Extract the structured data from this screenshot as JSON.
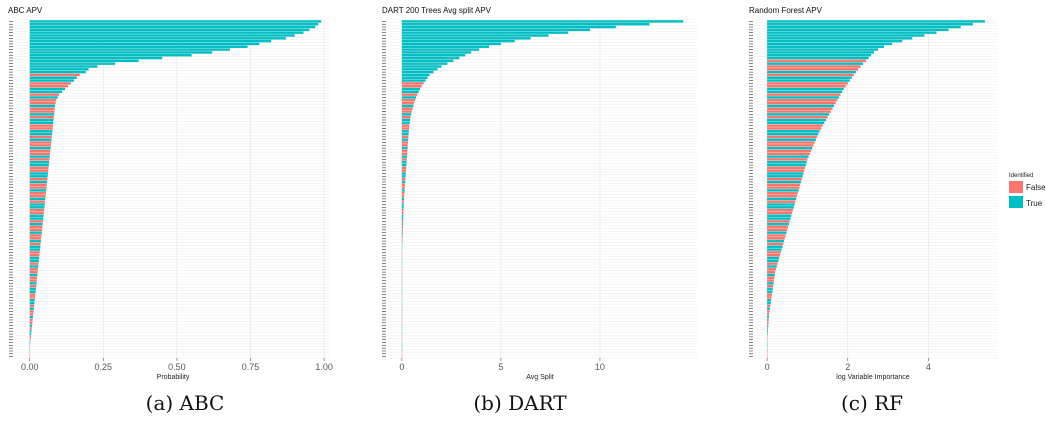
{
  "legend": {
    "title": "Identified",
    "items": [
      {
        "label": "False",
        "color": "#F8766D"
      },
      {
        "label": "True",
        "color": "#00BFC4"
      }
    ]
  },
  "chart_data": [
    {
      "type": "bar",
      "orientation": "horizontal",
      "title": "ABC APV",
      "xlabel": "Probability",
      "caption": "(a) ABC",
      "xlim": [
        -0.05,
        1.02
      ],
      "xticks": [
        0.0,
        0.25,
        0.5,
        0.75,
        1.0
      ],
      "xtick_labels": [
        "0.00",
        "0.25",
        "0.50",
        "0.75",
        "1.00"
      ],
      "n_true_top": 18,
      "true_values": [
        0.99,
        0.98,
        0.97,
        0.95,
        0.93,
        0.9,
        0.87,
        0.82,
        0.78,
        0.74,
        0.68,
        0.62,
        0.55,
        0.45,
        0.37,
        0.29,
        0.23,
        0.2
      ],
      "values": [
        0.99,
        0.98,
        0.97,
        0.95,
        0.93,
        0.9,
        0.87,
        0.82,
        0.78,
        0.74,
        0.68,
        0.62,
        0.55,
        0.45,
        0.37,
        0.29,
        0.23,
        0.2,
        0.19,
        0.17,
        0.16,
        0.15,
        0.14,
        0.13,
        0.12,
        0.11,
        0.1,
        0.095,
        0.09,
        0.088,
        0.086,
        0.085,
        0.084,
        0.083,
        0.082,
        0.081,
        0.08,
        0.079,
        0.078,
        0.077,
        0.076,
        0.075,
        0.074,
        0.073,
        0.072,
        0.071,
        0.07,
        0.069,
        0.068,
        0.067,
        0.066,
        0.065,
        0.064,
        0.063,
        0.062,
        0.061,
        0.06,
        0.059,
        0.058,
        0.057,
        0.056,
        0.055,
        0.054,
        0.053,
        0.052,
        0.051,
        0.05,
        0.049,
        0.048,
        0.047,
        0.046,
        0.045,
        0.044,
        0.043,
        0.042,
        0.041,
        0.04,
        0.039,
        0.038,
        0.037,
        0.036,
        0.035,
        0.034,
        0.033,
        0.032,
        0.031,
        0.03,
        0.029,
        0.028,
        0.027,
        0.026,
        0.025,
        0.024,
        0.023,
        0.022,
        0.021,
        0.02,
        0.019,
        0.018,
        0.017,
        0.016,
        0.015,
        0.014,
        0.013,
        0.012,
        0.011,
        0.01,
        0.009,
        0.008,
        0.007,
        0.006,
        0.005,
        0.004,
        0.003,
        0.002,
        0.001,
        0.0005,
        0.0003,
        0.0002,
        0.0001
      ]
    },
    {
      "type": "bar",
      "orientation": "horizontal",
      "title": "DART 200 Trees Avg split APV",
      "xlabel": "Avg Split",
      "caption": "(b) DART",
      "xlim": [
        -0.7,
        14.9
      ],
      "xticks": [
        0,
        5,
        10
      ],
      "xtick_labels": [
        "0",
        "5",
        "10"
      ],
      "n_true_top": 20,
      "true_values": [
        14.2,
        12.5,
        10.8,
        9.5,
        8.4,
        7.4,
        6.5,
        5.7,
        5.0,
        4.4,
        3.9,
        3.5,
        3.2,
        2.9,
        2.6,
        2.3,
        2.0,
        1.8,
        1.6,
        1.4
      ],
      "values": [
        14.2,
        12.5,
        10.8,
        9.5,
        8.4,
        7.4,
        6.5,
        5.7,
        5.0,
        4.4,
        3.9,
        3.5,
        3.2,
        2.9,
        2.6,
        2.3,
        2.0,
        1.8,
        1.6,
        1.4,
        1.3,
        1.2,
        1.1,
        1.0,
        0.92,
        0.85,
        0.78,
        0.72,
        0.67,
        0.62,
        0.58,
        0.54,
        0.5,
        0.47,
        0.44,
        0.42,
        0.4,
        0.38,
        0.36,
        0.35,
        0.34,
        0.33,
        0.32,
        0.31,
        0.3,
        0.29,
        0.28,
        0.27,
        0.26,
        0.25,
        0.24,
        0.23,
        0.22,
        0.21,
        0.2,
        0.19,
        0.18,
        0.17,
        0.16,
        0.15,
        0.14,
        0.13,
        0.12,
        0.11,
        0.1,
        0.095,
        0.09,
        0.085,
        0.08,
        0.075,
        0.07,
        0.065,
        0.06,
        0.055,
        0.05,
        0.045,
        0.04,
        0.035,
        0.03,
        0.025,
        0.02,
        0.015,
        0.01,
        0.008,
        0.006,
        0.004,
        0.003,
        0.002,
        0.001,
        0.0008,
        0.0006,
        0.0004,
        0.0002,
        0.0001,
        0,
        0,
        0,
        0,
        0,
        0,
        0,
        0,
        0,
        0,
        0,
        0,
        0,
        0,
        0,
        0,
        0,
        0,
        0,
        0,
        0,
        0,
        0,
        0,
        0,
        0
      ]
    },
    {
      "type": "bar",
      "orientation": "horizontal",
      "title": "Random Forest APV",
      "xlabel": "log Variable Importance",
      "caption": "(c) RF",
      "xlim": [
        -0.3,
        5.7
      ],
      "xticks": [
        0,
        2,
        4
      ],
      "xtick_labels": [
        "0",
        "2",
        "4"
      ],
      "n_true_top": 14,
      "true_values": [
        5.4,
        5.1,
        4.8,
        4.5,
        4.2,
        3.9,
        3.6,
        3.35,
        3.1,
        2.9,
        2.75,
        2.65,
        2.58,
        2.52
      ],
      "values": [
        5.4,
        5.1,
        4.8,
        4.5,
        4.2,
        3.9,
        3.6,
        3.35,
        3.1,
        2.9,
        2.75,
        2.65,
        2.58,
        2.52,
        2.45,
        2.38,
        2.32,
        2.26,
        2.2,
        2.15,
        2.1,
        2.05,
        2.0,
        1.95,
        1.9,
        1.86,
        1.82,
        1.78,
        1.74,
        1.7,
        1.66,
        1.62,
        1.58,
        1.54,
        1.5,
        1.46,
        1.42,
        1.38,
        1.34,
        1.3,
        1.27,
        1.24,
        1.21,
        1.18,
        1.15,
        1.12,
        1.09,
        1.06,
        1.03,
        1.0,
        0.98,
        0.96,
        0.94,
        0.92,
        0.9,
        0.88,
        0.86,
        0.84,
        0.82,
        0.8,
        0.78,
        0.76,
        0.74,
        0.72,
        0.7,
        0.68,
        0.66,
        0.64,
        0.62,
        0.6,
        0.58,
        0.56,
        0.54,
        0.52,
        0.5,
        0.48,
        0.46,
        0.44,
        0.42,
        0.4,
        0.38,
        0.36,
        0.34,
        0.32,
        0.3,
        0.28,
        0.26,
        0.24,
        0.22,
        0.2,
        0.19,
        0.18,
        0.17,
        0.16,
        0.15,
        0.14,
        0.13,
        0.12,
        0.11,
        0.1,
        0.09,
        0.08,
        0.07,
        0.06,
        0.05,
        0.045,
        0.04,
        0.035,
        0.03,
        0.025,
        0.02,
        0.015,
        0.01,
        0.008,
        0.006,
        0.004,
        0.003,
        0.002,
        0.001,
        0.0005
      ]
    }
  ]
}
